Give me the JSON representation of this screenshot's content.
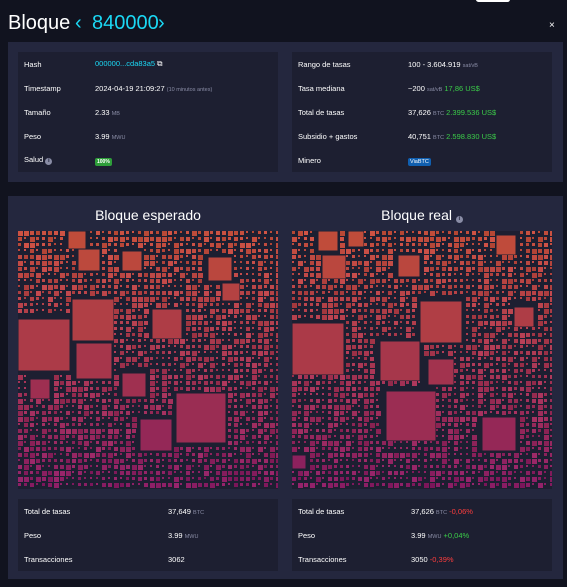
{
  "header": {
    "title": "Bloque",
    "height": "840000",
    "prev_icon": "chevron-left-icon",
    "next_icon": "chevron-right-icon",
    "close": "×"
  },
  "details": {
    "left": [
      {
        "label": "Hash",
        "value": "000000...cda83a5",
        "copy_icon": "⧉"
      },
      {
        "label": "Timestamp",
        "value": "2024-04-19 21:09:27",
        "note": "(10 minutos antes)"
      },
      {
        "label": "Tamaño",
        "value": "2.33",
        "unit": "MB"
      },
      {
        "label": "Peso",
        "value": "3.99",
        "unit": "MWU"
      },
      {
        "label": "Salud",
        "badge": "100%"
      }
    ],
    "right": [
      {
        "label": "Rango de tasas",
        "value": "100 - 3.604.919",
        "unit": "sat/vB"
      },
      {
        "label": "Tasa mediana",
        "value": "~200",
        "unit": "sat/vB",
        "fiat": "17,86 US$"
      },
      {
        "label": "Total de tasas",
        "value": "37,626",
        "unit": "BTC",
        "fiat": "2.399.536 US$"
      },
      {
        "label": "Subsidio + gastos",
        "value": "40,751",
        "unit": "BTC",
        "fiat": "2.598.830 US$"
      },
      {
        "label": "Minero",
        "badge": "ViaBTC"
      }
    ]
  },
  "expected": {
    "title": "Bloque esperado",
    "stats": [
      {
        "label": "Total de tasas",
        "value": "37,649",
        "unit": "BTC"
      },
      {
        "label": "Peso",
        "value": "3.99",
        "unit": "MWU"
      },
      {
        "label": "Transacciones",
        "value": "3062"
      }
    ]
  },
  "actual": {
    "title": "Bloque real",
    "stats": [
      {
        "label": "Total de tasas",
        "value": "37,626",
        "unit": "BTC",
        "delta": "-0,06%"
      },
      {
        "label": "Peso",
        "value": "3.99",
        "unit": "MWU",
        "delta": "+0,04%"
      },
      {
        "label": "Transacciones",
        "value": "3050",
        "delta": "-0,39%"
      }
    ]
  },
  "colors": {
    "accent": "#1bd8f4",
    "panel": "#24273e",
    "row": "#1d1f31",
    "positive": "#3bcc49",
    "negative": "#ff3d3d"
  }
}
